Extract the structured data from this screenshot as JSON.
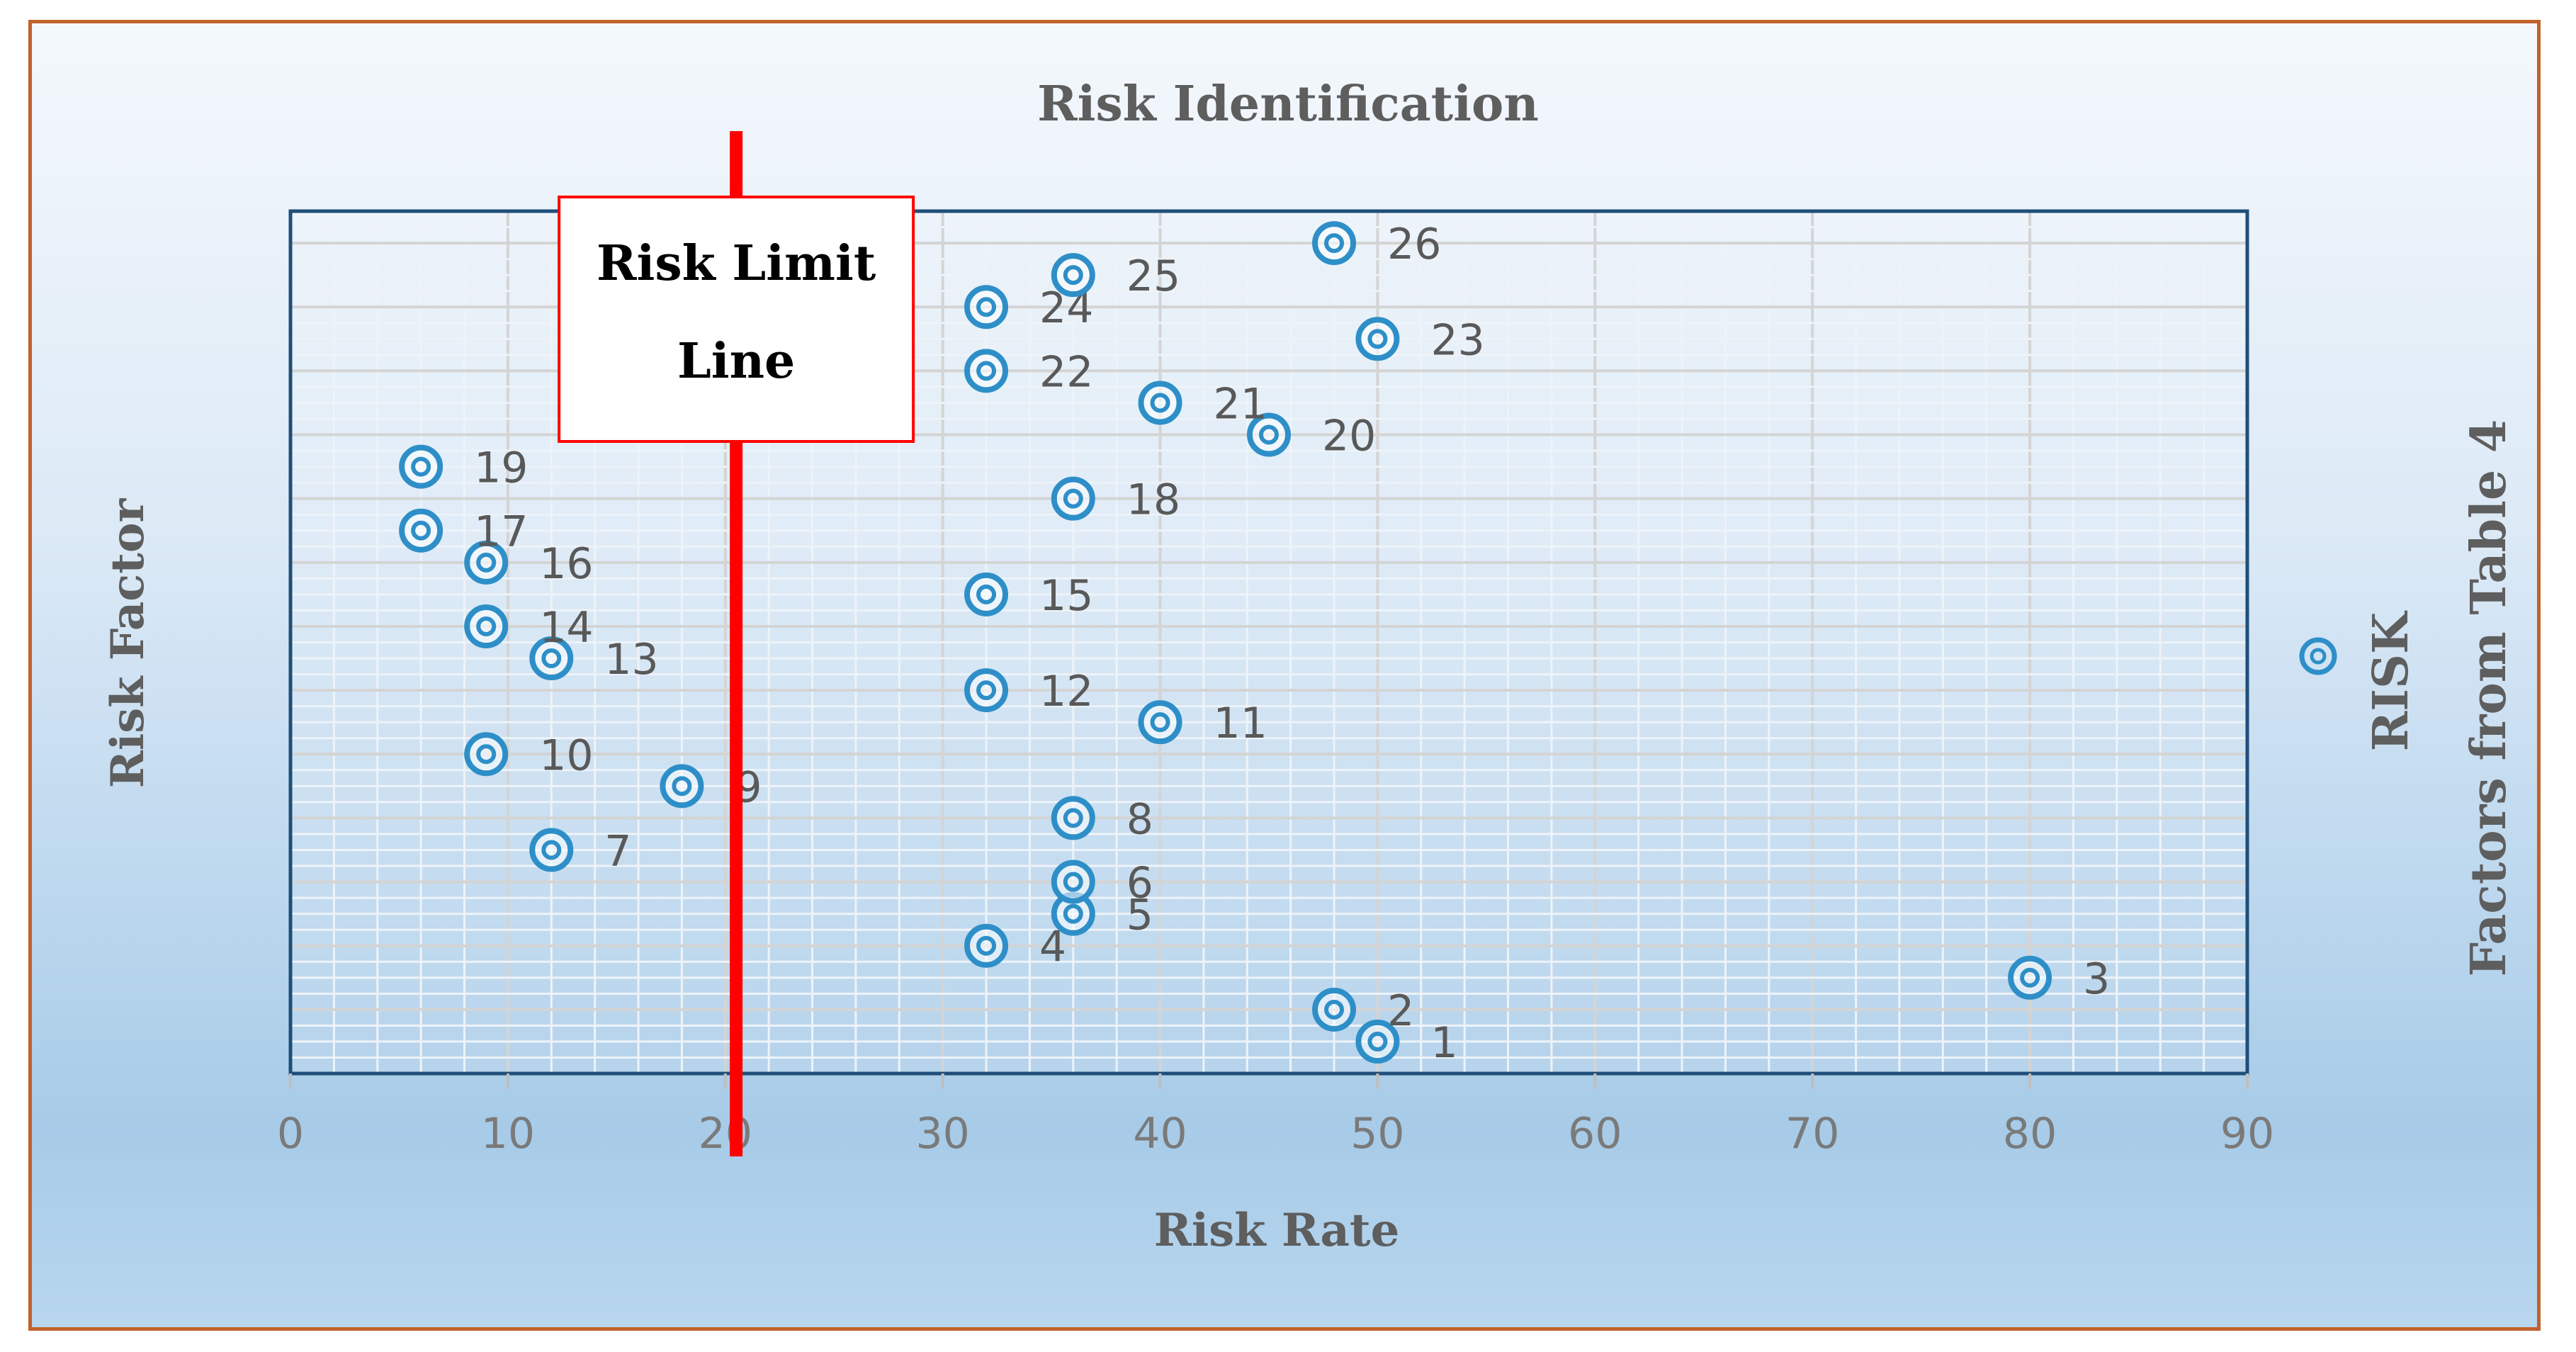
{
  "chart_data": {
    "type": "scatter",
    "title": "Risk Identification",
    "xlabel": "Risk Rate",
    "ylabel": "Risk Factor",
    "xlim": [
      0,
      90
    ],
    "ylim": [
      0,
      27
    ],
    "x_ticks": [
      "0",
      "10",
      "20",
      "30",
      "40",
      "50",
      "60",
      "70",
      "80",
      "90"
    ],
    "grid": true,
    "series": [
      {
        "name": "RISK",
        "points": [
          {
            "label": "1",
            "x": 50,
            "y": 1
          },
          {
            "label": "2",
            "x": 48,
            "y": 2
          },
          {
            "label": "3",
            "x": 80,
            "y": 3
          },
          {
            "label": "4",
            "x": 32,
            "y": 4
          },
          {
            "label": "5",
            "x": 36,
            "y": 5
          },
          {
            "label": "6",
            "x": 36,
            "y": 6
          },
          {
            "label": "7",
            "x": 12,
            "y": 7
          },
          {
            "label": "8",
            "x": 36,
            "y": 8
          },
          {
            "label": "9",
            "x": 18,
            "y": 9
          },
          {
            "label": "10",
            "x": 9,
            "y": 10
          },
          {
            "label": "11",
            "x": 40,
            "y": 11
          },
          {
            "label": "12",
            "x": 32,
            "y": 12
          },
          {
            "label": "13",
            "x": 12,
            "y": 13
          },
          {
            "label": "14",
            "x": 9,
            "y": 14
          },
          {
            "label": "15",
            "x": 32,
            "y": 15
          },
          {
            "label": "16",
            "x": 9,
            "y": 16
          },
          {
            "label": "17",
            "x": 6,
            "y": 17
          },
          {
            "label": "18",
            "x": 36,
            "y": 18
          },
          {
            "label": "19",
            "x": 6,
            "y": 19
          },
          {
            "label": "20",
            "x": 45,
            "y": 20
          },
          {
            "label": "21",
            "x": 40,
            "y": 21
          },
          {
            "label": "22",
            "x": 32,
            "y": 22
          },
          {
            "label": "23",
            "x": 50,
            "y": 23
          },
          {
            "label": "24",
            "x": 32,
            "y": 24
          },
          {
            "label": "25",
            "x": 36,
            "y": 25
          },
          {
            "label": "26",
            "x": 48,
            "y": 26
          }
        ]
      }
    ],
    "risk_limit": {
      "x": 20.5,
      "label_line1": "Risk Limit",
      "label_line2": "Line",
      "color": "#ff0000"
    },
    "legend": {
      "position": "right",
      "label": "RISK",
      "secondary_label": "Factors from Table 4"
    },
    "marker_color": "#2e8fc8"
  }
}
